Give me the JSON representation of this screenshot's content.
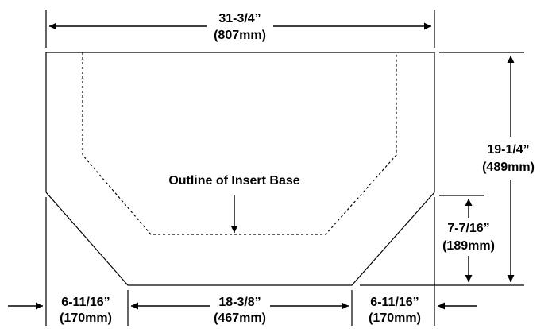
{
  "dimensions": {
    "overall_width": {
      "inches": "31-3/4”",
      "mm": "(807mm)"
    },
    "overall_depth": {
      "inches": "19-1/4”",
      "mm": "(489mm)"
    },
    "side_depth": {
      "inches": "7-7/16”",
      "mm": "(189mm)"
    },
    "left_offset": {
      "inches": "6-11/16”",
      "mm": "(170mm)"
    },
    "front_width": {
      "inches": "18-3/8”",
      "mm": "(467mm)"
    },
    "right_offset": {
      "inches": "6-11/16”",
      "mm": "(170mm)"
    }
  },
  "annotation": "Outline of Insert Base"
}
